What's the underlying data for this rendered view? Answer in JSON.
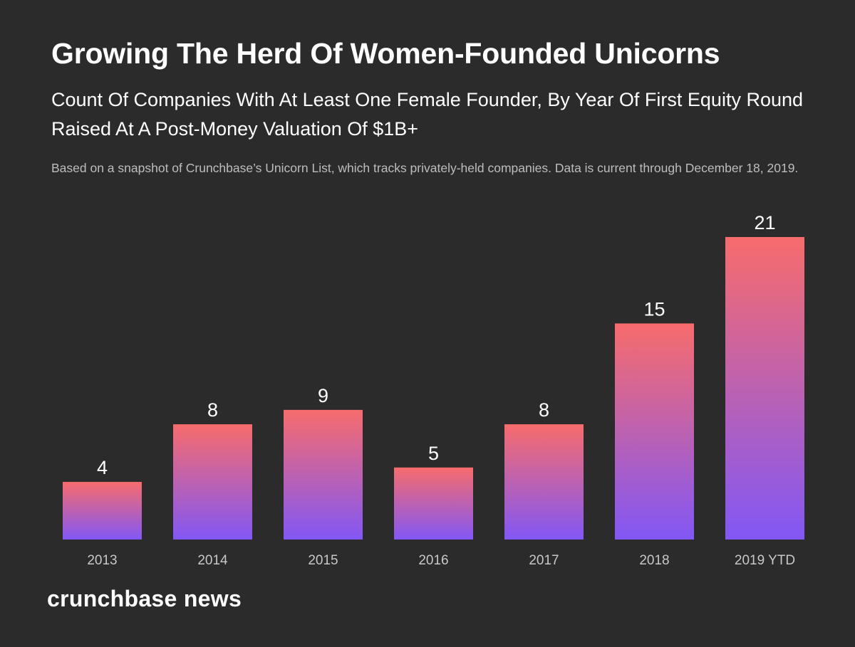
{
  "title": "Growing The Herd Of Women-Founded Unicorns",
  "subtitle": "Count Of Companies With At Least One Female Founder, By Year Of First Equity Round Raised At A Post-Money Valuation Of $1B+",
  "note": "Based on a snapshot of Crunchbase’s Unicorn List, which tracks privately-held companies. Data is current through December 18, 2019.",
  "brand": "crunchbase news",
  "colors": {
    "background": "#2b2b2b",
    "bar_top": "#f76c6c",
    "bar_bottom": "#8257f5",
    "tick_label": "#c8c8c8"
  },
  "chart_data": {
    "type": "bar",
    "title": "Growing The Herd Of Women-Founded Unicorns",
    "categories": [
      "2013",
      "2014",
      "2015",
      "2016",
      "2017",
      "2018",
      "2019 YTD"
    ],
    "values": [
      4,
      8,
      9,
      5,
      8,
      15,
      21
    ],
    "xlabel": "",
    "ylabel": "",
    "ylim": [
      0,
      21
    ],
    "grid": false,
    "legend": "none"
  }
}
